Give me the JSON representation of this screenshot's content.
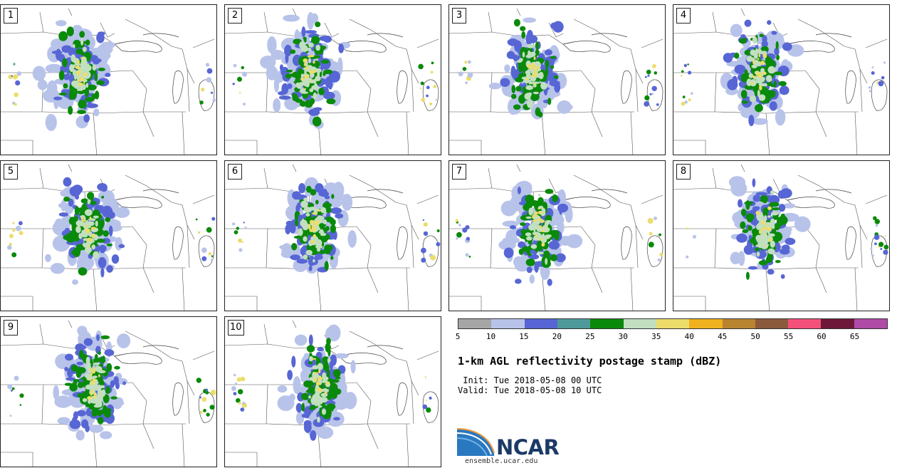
{
  "panels": [
    {
      "label": "1"
    },
    {
      "label": "2"
    },
    {
      "label": "3"
    },
    {
      "label": "4"
    },
    {
      "label": "5"
    },
    {
      "label": "6"
    },
    {
      "label": "7"
    },
    {
      "label": "8"
    },
    {
      "label": "9"
    },
    {
      "label": "10"
    }
  ],
  "colorbar": {
    "colors": [
      "#a6a6a6",
      "#b8c3ea",
      "#5766d4",
      "#4e9a9a",
      "#0a8a0a",
      "#c2dfc0",
      "#ecdd6b",
      "#f0b21e",
      "#b98430",
      "#8b5a3c",
      "#f4517a",
      "#6e1839",
      "#b04ba8"
    ],
    "ticks": [
      "5",
      "10",
      "15",
      "20",
      "25",
      "30",
      "35",
      "40",
      "45",
      "50",
      "55",
      "60",
      "65"
    ]
  },
  "title": "1-km AGL reflectivity postage stamp (dBZ)",
  "init": " Init: Tue 2018-05-08 00 UTC",
  "valid": "Valid: Tue 2018-05-08 10 UTC",
  "logo": {
    "text": "NCAR",
    "url": "ensemble.ucar.edu"
  }
}
